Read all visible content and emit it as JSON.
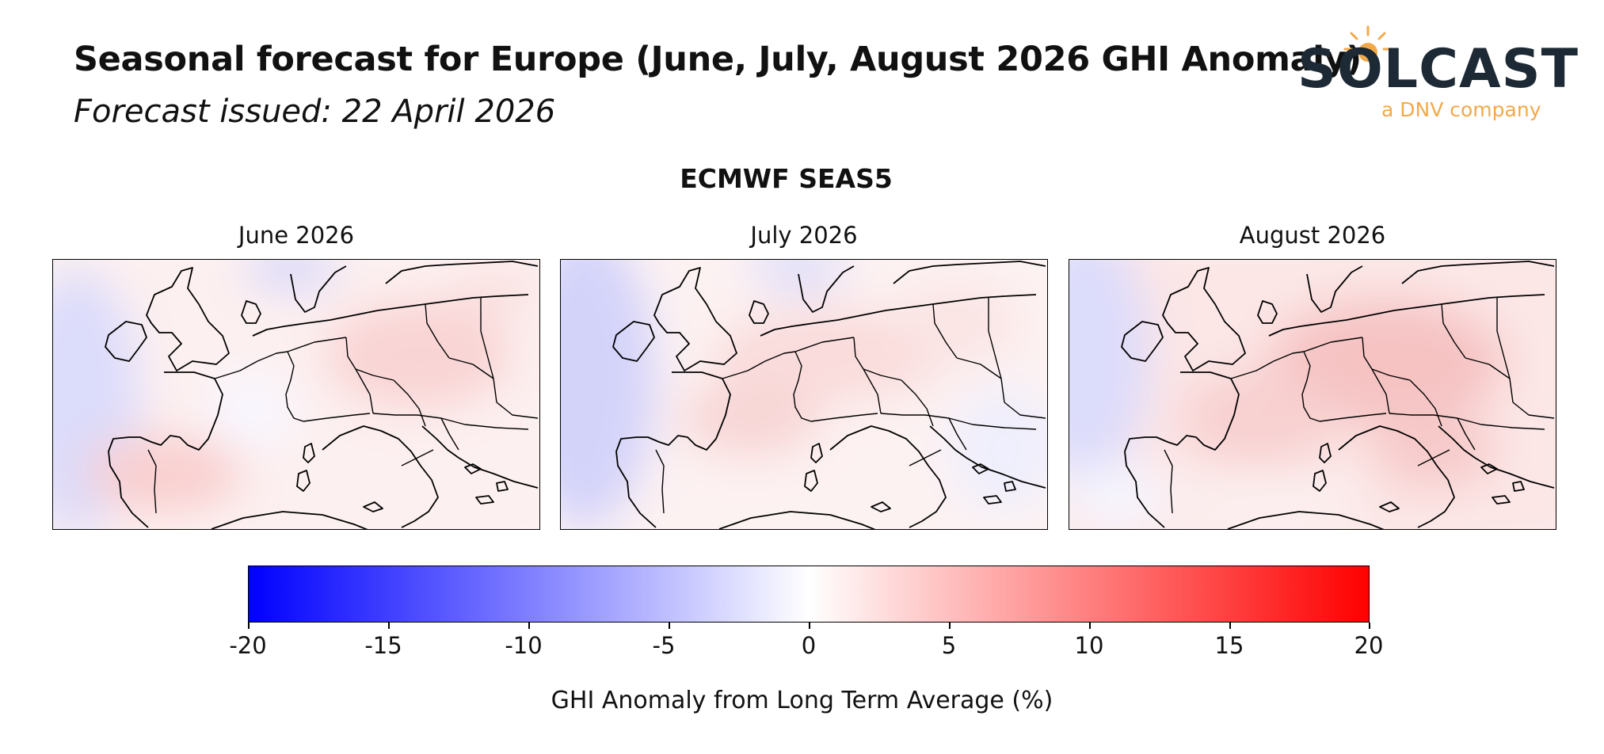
{
  "header": {
    "title": "Seasonal forecast for Europe (June, July, August 2026 GHI Anomaly)",
    "subtitle": "Forecast issued: 22 April 2026"
  },
  "logo": {
    "brand": "SOLCAST",
    "tagline": "a DNV company",
    "brand_color": "#1d2a35",
    "accent_color": "#f2a94a"
  },
  "model": {
    "name": "ECMWF SEAS5"
  },
  "panels": [
    {
      "title": "June 2026"
    },
    {
      "title": "July 2026"
    },
    {
      "title": "August 2026"
    }
  ],
  "colorbar": {
    "label": "GHI Anomaly from Long Term Average (%)",
    "min": -20,
    "max": 20,
    "ticks": [
      "-20",
      "-15",
      "-10",
      "-5",
      "0",
      "5",
      "10",
      "15",
      "20"
    ],
    "colormap": [
      "#0000ff",
      "#ffffff",
      "#ff0000"
    ]
  }
}
